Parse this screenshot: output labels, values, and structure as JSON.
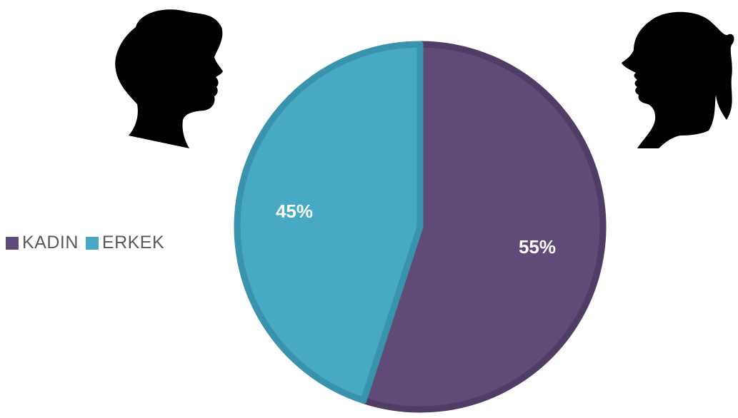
{
  "chart_data": {
    "type": "pie",
    "categories": [
      "KADIN",
      "ERKEK"
    ],
    "values": [
      55,
      45
    ],
    "data_labels": [
      "55%",
      "45%"
    ],
    "colors": [
      "#5f4a78",
      "#47a9c4"
    ],
    "legend": "left",
    "title": ""
  },
  "decorations": {
    "left_icon": "male-head-silhouette-icon",
    "right_icon": "female-head-silhouette-icon"
  }
}
